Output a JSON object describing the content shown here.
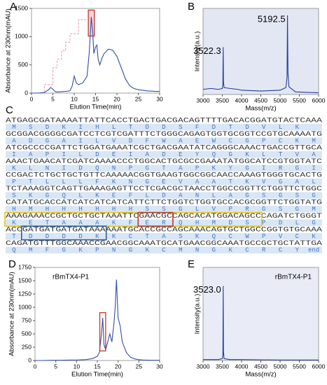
{
  "chart_data": [
    {
      "label": "A",
      "type": "line",
      "xlabel": "Elution Time(min)",
      "ylabel": "Absorbance at 230nm(mAU)",
      "x": [
        0,
        1,
        2,
        3,
        4,
        4.5,
        5,
        5.5,
        6,
        7,
        8,
        9,
        9.5,
        10,
        10.5,
        11,
        12,
        13,
        13.5,
        14,
        14.3,
        14.6,
        15,
        15.3,
        15.6,
        16,
        16.5,
        17,
        18,
        19,
        20,
        21,
        22,
        23,
        24,
        25,
        26,
        27,
        28,
        29,
        30
      ],
      "values": [
        0,
        0,
        2,
        10,
        60,
        100,
        70,
        30,
        20,
        25,
        30,
        40,
        120,
        300,
        180,
        150,
        180,
        300,
        700,
        1350,
        1100,
        700,
        820,
        850,
        600,
        500,
        620,
        700,
        780,
        760,
        650,
        450,
        250,
        130,
        80,
        60,
        50,
        40,
        35,
        30,
        30
      ],
      "color": "#2e4fa3",
      "xlim": [
        0,
        30
      ],
      "ylim": [
        0,
        1500
      ],
      "xticks": [
        0,
        5,
        10,
        15,
        20,
        25,
        30
      ],
      "yticks": [
        0,
        500,
        1000,
        1500
      ]
    },
    {
      "label": "B",
      "type": "line",
      "xlabel": "Mass(m/z)",
      "ylabel": "Intensity(a.u.)",
      "x": [
        3000,
        3200,
        3400,
        3500,
        3515,
        3522.3,
        3530,
        3545,
        3700,
        3900,
        4000,
        4500,
        5000,
        5150,
        5180,
        5192.5,
        5205,
        5230,
        5400,
        6000
      ],
      "values": [
        6,
        7,
        6,
        7,
        12,
        55,
        15,
        8,
        7,
        6,
        5,
        4,
        5,
        8,
        20,
        92,
        25,
        9,
        3,
        2
      ],
      "color": "#1f3d99",
      "xlim": [
        3000,
        6000
      ],
      "ylim": [
        0,
        100
      ],
      "xticks": [
        3000,
        3500,
        4000,
        4500,
        5000,
        5500,
        6000
      ],
      "annotations": [
        {
          "text": "3522.3",
          "x": 3522.3
        },
        {
          "text": "5192.5",
          "x": 5192.5
        }
      ]
    },
    {
      "label": "D",
      "type": "line",
      "xlabel": "Elution Time(min)",
      "ylabel": "Absorbance at 230nm(mAU)",
      "note": "rBmTX4-P1",
      "x": [
        0,
        2,
        4,
        6,
        8,
        10,
        12,
        13,
        14,
        15,
        15.5,
        16,
        16.3,
        16.6,
        17,
        17.5,
        18,
        18.5,
        19,
        19.3,
        19.6,
        20,
        20.5,
        21,
        22,
        23,
        24,
        25,
        26,
        28,
        30
      ],
      "values": [
        0,
        0,
        5,
        5,
        8,
        10,
        15,
        25,
        40,
        80,
        150,
        500,
        800,
        300,
        200,
        350,
        500,
        350,
        700,
        1000,
        1520,
        800,
        650,
        350,
        150,
        60,
        30,
        15,
        10,
        5,
        5
      ],
      "color": "#2e4fa3",
      "xlim": [
        0,
        30
      ],
      "ylim": [
        0,
        1750
      ],
      "xticks": [
        0,
        5,
        10,
        15,
        20,
        25,
        30
      ],
      "yticks": [
        0,
        250,
        500,
        750,
        1000,
        1250,
        1500,
        1750
      ]
    },
    {
      "label": "E",
      "type": "line",
      "xlabel": "Mass(m/z)",
      "ylabel": "Intensity(a.u.)",
      "note": "rBmTX4-P1",
      "x": [
        3000,
        3400,
        3500,
        3515,
        3523.0,
        3530,
        3545,
        3700,
        4000,
        5000,
        6000
      ],
      "values": [
        1,
        1,
        2,
        6,
        80,
        10,
        2,
        1,
        1,
        0.5,
        0.5
      ],
      "color": "#1f3d99",
      "xlim": [
        3000,
        6000
      ],
      "ylim": [
        0,
        100
      ],
      "xticks": [
        3000,
        3500,
        4000,
        4500,
        5000,
        5500,
        6000
      ],
      "annotations": [
        {
          "text": "3523.0",
          "x": 3523
        }
      ]
    }
  ],
  "sequence": {
    "label": "C",
    "rows": [
      {
        "dna": "ATGAGCGATAAAATTATTCACCTGACTGACGACAGTTTTGACACGGATGTACTCAAA",
        "protein": [
          "M",
          "S",
          "D",
          "K",
          "I",
          "H",
          "L",
          "T",
          "D",
          "D",
          "S",
          "F",
          "D",
          "T",
          "D",
          "V",
          "L",
          "K"
        ]
      },
      {
        "dna": "GCGGACGGGGCGATCCTCGTCGATTTCTGGGCAGAGTGGTGCGGTCCGTGCAAAATG",
        "protein": [
          "A",
          "D",
          "G",
          "A",
          "I",
          "L",
          "V",
          "D",
          "F",
          "W",
          "A",
          "E",
          "W",
          "C",
          "G",
          "P",
          "C",
          "K",
          "M"
        ]
      },
      {
        "dna": "ATCGCCCCGATTCTGGATGAAATCGCTGACGAATATCAGGGCAAACTGACCGTTGCA",
        "protein": [
          "I",
          "A",
          "P",
          "I",
          "L",
          "D",
          "E",
          "I",
          "A",
          "D",
          "E",
          "Y",
          "Q",
          "G",
          "K",
          "L",
          "T",
          "V",
          "A"
        ]
      },
      {
        "dna": "AAACTGAACATCGATCAAAACCCTGGCACTGCGCCGAAATATGGCATCCGTGGTATC",
        "protein": [
          "K",
          "L",
          "N",
          "I",
          "D",
          "Q",
          "N",
          "P",
          "G",
          "T",
          "A",
          "P",
          "K",
          "Y",
          "G",
          "I",
          "R",
          "G",
          "I"
        ]
      },
      {
        "dna": "CCGACTCTGCTGCTGTTCAAAAACGGTGAAGTGGCGGCAACCAAAGTGGGTGCACTG",
        "protein": [
          "P",
          "T",
          "L",
          "L",
          "L",
          "F",
          "K",
          "N",
          "G",
          "E",
          "V",
          "A",
          "A",
          "T",
          "K",
          "V",
          "G",
          "A",
          "L"
        ]
      },
      {
        "dna": "TCTAAAGGTCAGTTGAAAGAGTTCCTCGACGCTAACCTGGCCGGTTCTGGTTCTGGC",
        "protein": [
          "S",
          "K",
          "G",
          "Q",
          "L",
          "K",
          "E",
          "F",
          "L",
          "D",
          "A",
          "N",
          "L",
          "A",
          "G",
          "S",
          "G",
          "S",
          "G"
        ]
      },
      {
        "dna": "CATATGCACCATCATCATCATCATTCTTCTGGTCTGGTGCCACGCGGTTCTGGTATG",
        "protein": [
          "H",
          "M",
          "H",
          "H",
          "H",
          "H",
          "H",
          "H",
          "S",
          "S",
          "G",
          "L",
          "V",
          "P",
          "R",
          "G",
          "S",
          "G",
          "M"
        ]
      },
      {
        "dna": "AAAGAAACCGCTGCTGCTAAATTCGAACGCCAGCACATGGACAGCCCAGATCTGGGT",
        "protein": [
          "K",
          "E",
          "T",
          "A",
          "A",
          "A",
          "K",
          "F",
          "E",
          "R",
          "Q",
          "H",
          "M",
          "D",
          "S",
          "P",
          "D",
          "L",
          "G"
        ]
      },
      {
        "dna": "ACCGATGATGATGATAAAAAATGCACCGCCAGCAAACAGTGCTGGCCGGTGTGCAAA",
        "protein": [
          "T",
          "D",
          "D",
          "D",
          "D",
          "K",
          "K",
          "C",
          "T",
          "A",
          "S",
          "K",
          "Q",
          "C",
          "W",
          "P",
          "V",
          "C",
          "K"
        ]
      },
      {
        "dna": "CAGATGTTTGGCAAACCGAACGGCAAATGCATGAACGGCAAATGCCGCTGCTATTGA",
        "protein": [
          "Q",
          "M",
          "F",
          "G",
          "K",
          "P",
          "N",
          "G",
          "K",
          "C",
          "M",
          "N",
          "G",
          "K",
          "C",
          "R",
          "C",
          "Y",
          "end"
        ]
      }
    ]
  }
}
